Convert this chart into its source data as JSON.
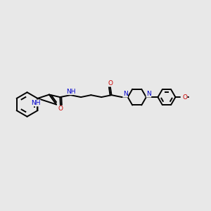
{
  "background_color": "#e8e8e8",
  "fig_width": 3.0,
  "fig_height": 3.0,
  "dpi": 100,
  "atom_color_N": "#0000cc",
  "atom_color_O": "#cc0000",
  "atom_color_C": "#000000",
  "bond_color": "#000000",
  "bond_width": 1.4,
  "font_size_atom": 6.5,
  "xlim": [
    0,
    10
  ],
  "ylim": [
    0,
    10
  ]
}
